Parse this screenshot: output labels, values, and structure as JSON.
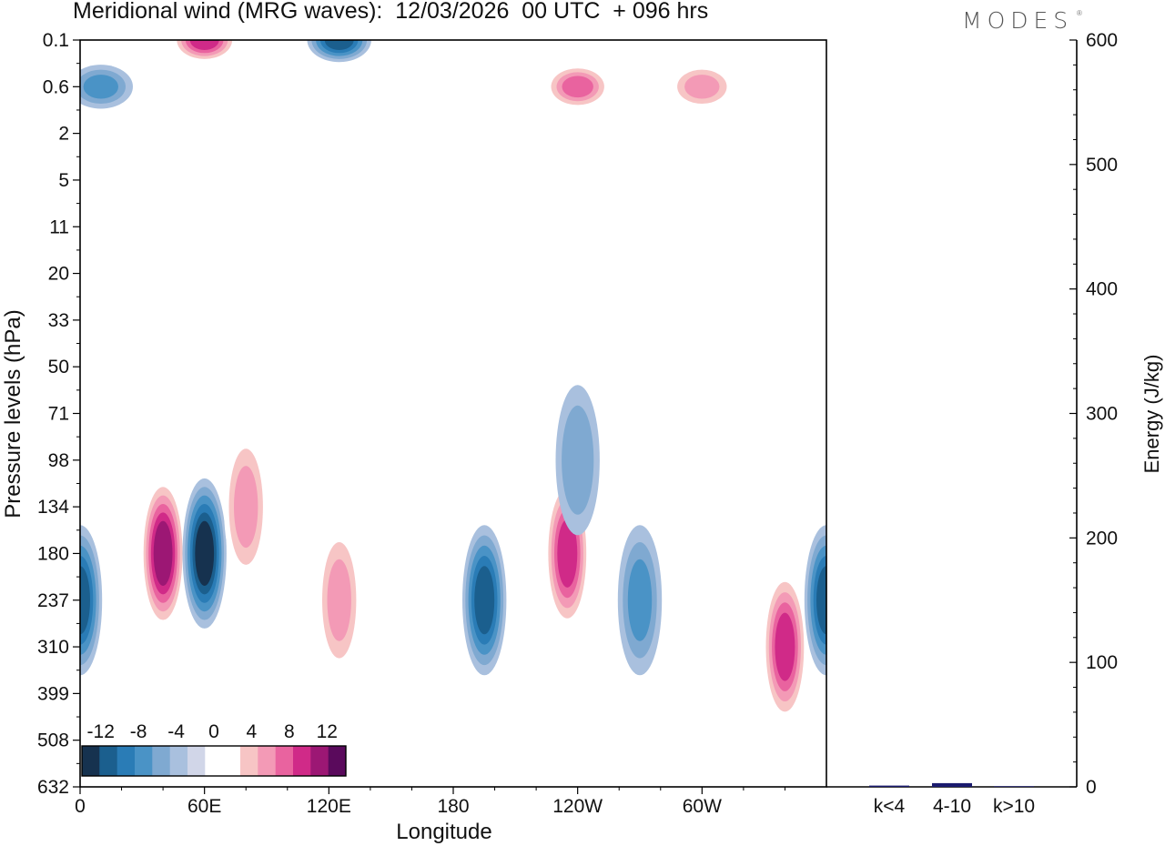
{
  "header": {
    "title": "Meridional wind (MRG waves):  12/03/2026  00 UTC  + 096 hrs",
    "logo": "MODES",
    "logo_mark": "®"
  },
  "chart_data": [
    {
      "type": "heatmap",
      "title": "Meridional wind (MRG waves):  12/03/2026  00 UTC  + 096 hrs",
      "xlabel": "Longitude",
      "ylabel": "Pressure levels (hPa)",
      "x_ticks": [
        "0",
        "60E",
        "120E",
        "180",
        "120W",
        "60W"
      ],
      "x_tick_degrees": [
        0,
        60,
        120,
        180,
        240,
        300
      ],
      "xlim": [
        0,
        360
      ],
      "y_ticks": [
        "0.1",
        "0.6",
        "2",
        "5",
        "11",
        "20",
        "33",
        "50",
        "71",
        "98",
        "134",
        "180",
        "237",
        "310",
        "399",
        "508",
        "632"
      ],
      "y_scale": "pressure levels (top 0.1 to bottom 632 hPa)",
      "colorbar": {
        "labels": [
          "-12",
          "-8",
          "-4",
          "0",
          "4",
          "8",
          "12"
        ],
        "levels": [
          -14,
          -12,
          -10,
          -8,
          -6,
          -4,
          -2,
          0,
          2,
          4,
          6,
          8,
          10,
          12,
          14
        ],
        "colors": [
          "#16324f",
          "#1b5f8e",
          "#2a7cb6",
          "#4a93c6",
          "#7fa9d1",
          "#a9c0de",
          "#d1d6e8",
          "#ffffff",
          "#ffffff",
          "#f7c5c5",
          "#f39ab6",
          "#e9639f",
          "#d02a88",
          "#9c1774",
          "#5a0a5c"
        ]
      },
      "features": [
        {
          "sign": "neg",
          "lon": 0,
          "p_level": 237,
          "peak": -10
        },
        {
          "sign": "pos",
          "lon": 40,
          "p_level": 180,
          "peak": 12
        },
        {
          "sign": "neg",
          "lon": 60,
          "p_level": 180,
          "peak": -12
        },
        {
          "sign": "pos",
          "lon": 80,
          "p_level": 134,
          "peak": 6
        },
        {
          "sign": "pos",
          "lon": 125,
          "p_level": 237,
          "peak": 6
        },
        {
          "sign": "neg",
          "lon": 195,
          "p_level": 237,
          "peak": -10
        },
        {
          "sign": "pos",
          "lon": 235,
          "p_level": 180,
          "peak": 10
        },
        {
          "sign": "neg",
          "lon": 240,
          "p_level": 98,
          "peak": -5
        },
        {
          "sign": "neg",
          "lon": 270,
          "p_level": 237,
          "peak": -6
        },
        {
          "sign": "pos",
          "lon": 340,
          "p_level": 310,
          "peak": 10
        },
        {
          "sign": "neg",
          "lon": 360,
          "p_level": 237,
          "peak": -10
        },
        {
          "sign": "pos",
          "lon": 60,
          "p_level": 0.1,
          "peak": 10
        },
        {
          "sign": "neg",
          "lon": 125,
          "p_level": 0.1,
          "peak": -10
        },
        {
          "sign": "pos",
          "lon": 240,
          "p_level": 0.6,
          "peak": 8
        },
        {
          "sign": "pos",
          "lon": 300,
          "p_level": 0.6,
          "peak": 6
        },
        {
          "sign": "neg",
          "lon": 10,
          "p_level": 0.6,
          "peak": -6
        }
      ]
    },
    {
      "type": "bar",
      "title": "",
      "ylabel": "Energy (J/kg)",
      "categories": [
        "k<4",
        "4-10",
        "k>10"
      ],
      "values": [
        1,
        3,
        0.5
      ],
      "ylim": [
        0,
        600
      ],
      "y_ticks": [
        "0",
        "100",
        "200",
        "300",
        "400",
        "500",
        "600"
      ],
      "bar_color": "#1a1a6e"
    }
  ]
}
